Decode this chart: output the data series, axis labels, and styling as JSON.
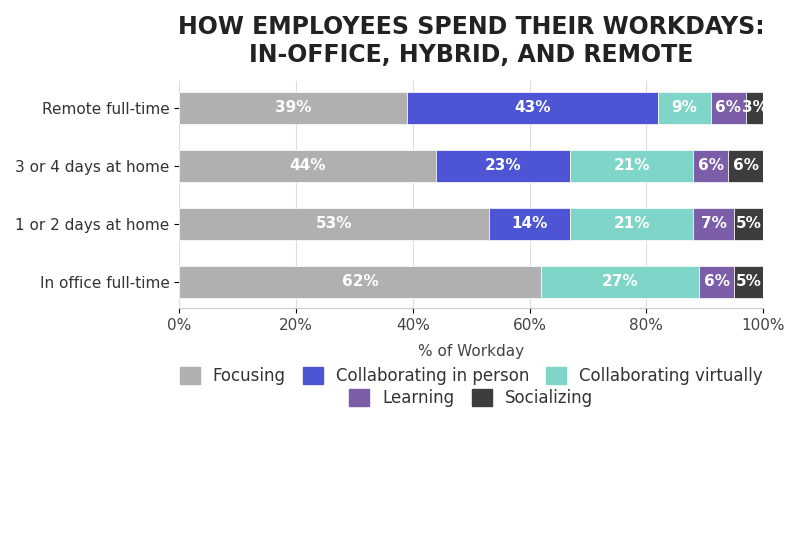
{
  "title": "HOW EMPLOYEES SPEND THEIR WORKDAYS:\nIN-OFFICE, HYBRID, AND REMOTE",
  "categories": [
    "In office full-time",
    "1 or 2 days at home",
    "3 or 4 days at home",
    "Remote full-time"
  ],
  "segments": {
    "Focusing": [
      39,
      44,
      53,
      62
    ],
    "Collaborating in person": [
      43,
      23,
      14,
      0
    ],
    "Collaborating virtually": [
      9,
      21,
      21,
      27
    ],
    "Learning": [
      6,
      6,
      7,
      6
    ],
    "Socializing": [
      3,
      6,
      5,
      5
    ]
  },
  "colors": {
    "Focusing": "#b0b0b0",
    "Collaborating in person": "#4d55d4",
    "Collaborating virtually": "#7fd6c8",
    "Learning": "#7b5ea7",
    "Socializing": "#3d3d3d"
  },
  "xlabel": "% of Workday",
  "xlim": [
    0,
    100
  ],
  "xtick_labels": [
    "0%",
    "20%",
    "40%",
    "60%",
    "80%",
    "100%"
  ],
  "xtick_values": [
    0,
    20,
    40,
    60,
    80,
    100
  ],
  "bar_height": 0.55,
  "background_color": "#ffffff",
  "title_fontsize": 17,
  "label_fontsize": 11,
  "tick_fontsize": 11,
  "legend_fontsize": 12
}
